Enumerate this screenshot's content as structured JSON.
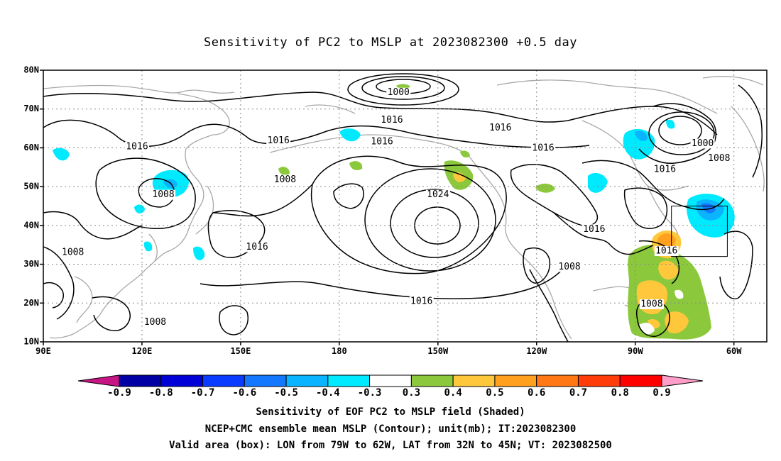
{
  "title": "Sensitivity of PC2 to MSLP at 2023082300 +0.5 day",
  "map": {
    "lon_range": [
      90,
      310
    ],
    "lat_range": [
      10,
      80
    ],
    "lat_ticks": [
      {
        "value": 80,
        "label": "80N"
      },
      {
        "value": 70,
        "label": "70N"
      },
      {
        "value": 60,
        "label": "60N"
      },
      {
        "value": 50,
        "label": "50N"
      },
      {
        "value": 40,
        "label": "40N"
      },
      {
        "value": 30,
        "label": "30N"
      },
      {
        "value": 20,
        "label": "20N"
      },
      {
        "value": 10,
        "label": "10N"
      }
    ],
    "lon_ticks": [
      {
        "value": 90,
        "label": "90E"
      },
      {
        "value": 120,
        "label": "120E"
      },
      {
        "value": 150,
        "label": "150E"
      },
      {
        "value": 180,
        "label": "180"
      },
      {
        "value": 210,
        "label": "150W"
      },
      {
        "value": 240,
        "label": "120W"
      },
      {
        "value": 270,
        "label": "90W"
      },
      {
        "value": 300,
        "label": "60W"
      }
    ],
    "valid_box": {
      "lon_min": 281,
      "lon_max": 298,
      "lat_min": 32,
      "lat_max": 45
    },
    "contour_labels": [
      {
        "text": "1000",
        "lon": 198,
        "lat": 74.2
      },
      {
        "text": "1016",
        "lon": 196,
        "lat": 67.1
      },
      {
        "text": "1016",
        "lon": 229,
        "lat": 65.1
      },
      {
        "text": "1016",
        "lon": 118.5,
        "lat": 60.3
      },
      {
        "text": "1016",
        "lon": 161.5,
        "lat": 61.8
      },
      {
        "text": "1016",
        "lon": 193,
        "lat": 61.5
      },
      {
        "text": "1016",
        "lon": 242,
        "lat": 59.9
      },
      {
        "text": "1000",
        "lon": 290.5,
        "lat": 61.1
      },
      {
        "text": "1008",
        "lon": 295.5,
        "lat": 57.2
      },
      {
        "text": "1016",
        "lon": 279,
        "lat": 54.4
      },
      {
        "text": "1008",
        "lon": 163.5,
        "lat": 51.8
      },
      {
        "text": "1024",
        "lon": 210,
        "lat": 47.9
      },
      {
        "text": "1008",
        "lon": 126.5,
        "lat": 47.9
      },
      {
        "text": "1016",
        "lon": 257.5,
        "lat": 39.0
      },
      {
        "text": "1016",
        "lon": 155,
        "lat": 34.4
      },
      {
        "text": "1016",
        "lon": 279.5,
        "lat": 33.4
      },
      {
        "text": "1008",
        "lon": 99,
        "lat": 33.0
      },
      {
        "text": "1008",
        "lon": 250,
        "lat": 29.3
      },
      {
        "text": "1016",
        "lon": 205,
        "lat": 20.4
      },
      {
        "text": "1008",
        "lon": 275,
        "lat": 19.7
      },
      {
        "text": "1008",
        "lon": 124,
        "lat": 15.0
      }
    ]
  },
  "colorbar": {
    "left_cap_color": "#c71585",
    "right_cap_color": "#ff9ec8",
    "colors": [
      "#0000a5",
      "#0000d7",
      "#0a3cff",
      "#1478ff",
      "#0ab4ff",
      "#00eaff",
      "#ffffff",
      "#8cc83c",
      "#ffc83c",
      "#ffa01e",
      "#ff7814",
      "#ff3c0a",
      "#ff0000"
    ],
    "labels": [
      "-0.9",
      "-0.8",
      "-0.7",
      "-0.6",
      "-0.5",
      "-0.4",
      "-0.3",
      "0.3",
      "0.4",
      "0.5",
      "0.6",
      "0.7",
      "0.8",
      "0.9"
    ]
  },
  "captions": {
    "line1": "Sensitivity of EOF PC2 to MSLP field (Shaded)",
    "line2": "NCEP+CMC ensemble mean MSLP (Contour); unit(mb); IT:2023082300",
    "line3": "Valid area (box): LON from 79W to 62W, LAT from 32N to 45N; VT: 2023082500"
  }
}
